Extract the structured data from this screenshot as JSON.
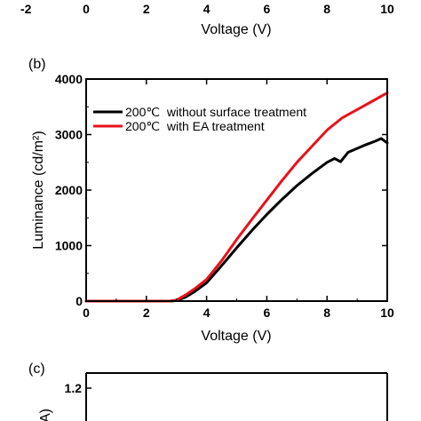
{
  "top_fragment": {
    "xticks": [
      "-2",
      "0",
      "2",
      "4",
      "6",
      "8",
      "10"
    ],
    "xlabel": "Voltage (V)"
  },
  "chart_data": [
    {
      "panel": "(b)",
      "type": "line",
      "xlabel": "Voltage (V)",
      "ylabel": "Luminance (cd/m²)",
      "xlim": [
        0,
        10
      ],
      "ylim": [
        0,
        4000
      ],
      "xticks": [
        0,
        2,
        4,
        6,
        8,
        10
      ],
      "yticks": [
        0,
        1000,
        2000,
        3000,
        4000
      ],
      "legend_position": "top-left",
      "series": [
        {
          "name": "200℃  without surface treatment",
          "color": "#000000",
          "x": [
            0,
            2.8,
            3.0,
            3.3,
            3.6,
            4.0,
            4.5,
            5.0,
            5.5,
            6.0,
            6.5,
            7.0,
            7.5,
            8.0,
            8.25,
            8.45,
            8.7,
            9.0,
            9.3,
            9.6,
            9.8,
            10.0
          ],
          "y": [
            0,
            0,
            10,
            70,
            170,
            330,
            640,
            960,
            1270,
            1560,
            1830,
            2080,
            2300,
            2500,
            2570,
            2510,
            2680,
            2750,
            2820,
            2880,
            2930,
            2850
          ]
        },
        {
          "name": "200℃  with EA treatment",
          "color": "#e8121b",
          "x": [
            0,
            2.8,
            3.0,
            3.3,
            3.6,
            4.0,
            4.5,
            5.0,
            5.5,
            6.0,
            6.5,
            7.0,
            7.5,
            8.0,
            8.5,
            9.0,
            9.5,
            10.0
          ],
          "y": [
            0,
            0,
            20,
            110,
            220,
            390,
            730,
            1110,
            1470,
            1820,
            2170,
            2500,
            2790,
            3080,
            3300,
            3450,
            3600,
            3750
          ]
        }
      ]
    },
    {
      "panel": "(c)",
      "type": "line",
      "ylabel": "A)",
      "yticks_visible": [
        "1.2"
      ]
    }
  ]
}
